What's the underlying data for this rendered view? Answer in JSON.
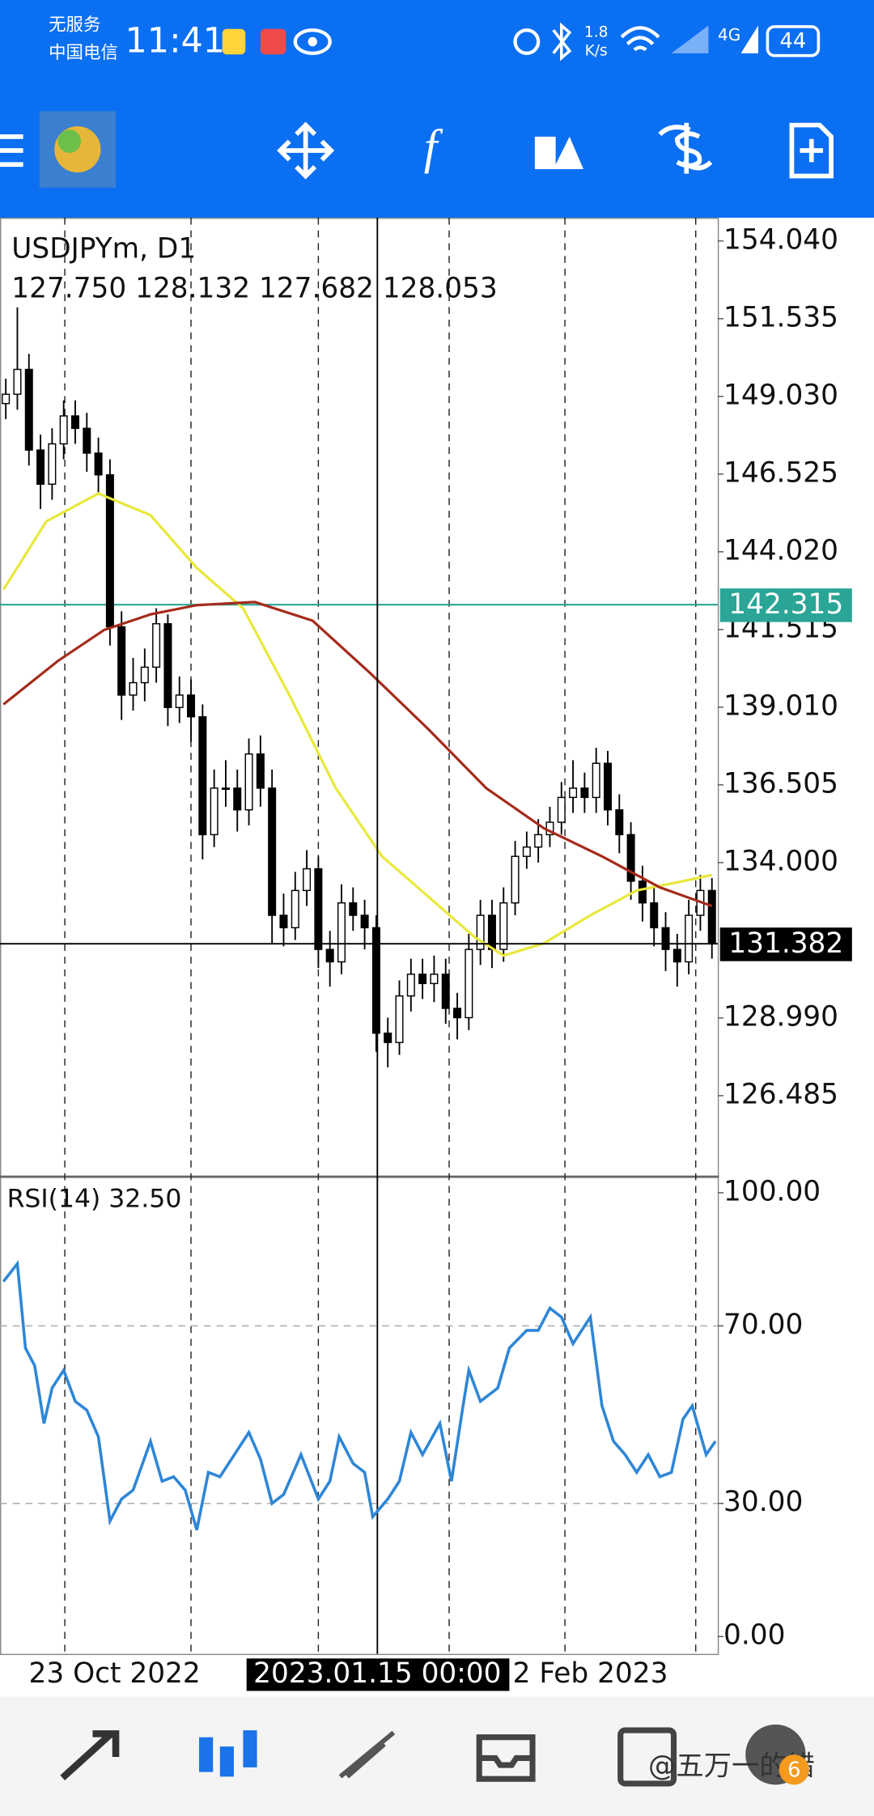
{
  "status_bar": {
    "carrier_top": "无服务",
    "carrier_bottom": "中国电信",
    "time": "11:41",
    "speed_value": "1.8",
    "speed_unit": "K/s",
    "network": "4G",
    "battery": "44"
  },
  "watermark": "@五万一的错",
  "badge": "6",
  "chart_data": [
    {
      "type": "candlestick",
      "title": "USDJPYm, D1",
      "ohlc_text": "127.750 128.132 127.682 128.053",
      "color": "#000000",
      "xlim": [
        -0.5,
        61.5
      ],
      "ylim": [
        123.91,
        154.79
      ],
      "yticks": [
        {
          "value": 154.04,
          "label": "154.040"
        },
        {
          "value": 151.535,
          "label": "151.535"
        },
        {
          "value": 149.03,
          "label": "149.030"
        },
        {
          "value": 146.525,
          "label": "146.525"
        },
        {
          "value": 144.02,
          "label": "144.020"
        },
        {
          "value": 141.515,
          "label": "141.515"
        },
        {
          "value": 139.01,
          "label": "139.010"
        },
        {
          "value": 136.505,
          "label": "136.505"
        },
        {
          "value": 134,
          "label": "134.000"
        },
        {
          "value": 128.99,
          "label": "128.990"
        },
        {
          "value": 126.485,
          "label": "126.485"
        }
      ],
      "xticks": [
        {
          "value": 9.4,
          "label": "23 Oct 2022"
        },
        {
          "value": 50.5,
          "label": "2 Feb 2023"
        }
      ],
      "open": [
        148.8,
        149.1,
        149.9,
        147.3,
        146.2,
        147.5,
        148.4,
        148.0,
        147.2,
        146.5,
        141.6,
        139.4,
        139.8,
        140.3,
        141.7,
        139.0,
        139.4,
        138.7,
        134.9,
        136.4,
        136.4,
        135.7,
        137.5,
        136.4,
        132.3,
        131.9,
        133.1,
        133.8,
        131.2,
        130.8,
        132.7,
        132.3,
        131.9,
        128.5,
        128.2,
        129.7,
        130.4,
        130.1,
        130.4,
        129.3,
        129.0,
        131.2,
        132.3,
        131.2,
        132.7,
        134.2,
        134.5,
        134.9,
        135.3,
        136.1,
        136.4,
        136.1,
        137.2,
        135.7,
        134.9,
        133.4,
        132.7,
        131.9,
        131.2,
        130.8,
        132.3,
        133.1
      ],
      "high": [
        149.6,
        151.9,
        150.4,
        147.8,
        148.0,
        148.9,
        148.9,
        148.5,
        147.7,
        147.0,
        142.1,
        140.6,
        140.9,
        142.2,
        142.0,
        140.0,
        139.9,
        139.1,
        137.0,
        137.3,
        137.0,
        138.0,
        138.1,
        137.0,
        133.0,
        133.7,
        134.4,
        134.2,
        131.8,
        133.3,
        133.2,
        132.8,
        132.3,
        129.0,
        130.2,
        130.9,
        130.9,
        131.0,
        130.9,
        129.8,
        131.7,
        132.8,
        132.8,
        133.2,
        134.7,
        135.0,
        135.4,
        135.8,
        136.6,
        137.3,
        136.9,
        137.7,
        137.6,
        136.2,
        135.3,
        133.9,
        133.2,
        132.4,
        131.7,
        132.8,
        133.6,
        133.5
      ],
      "low": [
        148.3,
        148.6,
        146.8,
        145.4,
        145.7,
        147.0,
        147.5,
        146.6,
        145.9,
        141.0,
        138.6,
        138.9,
        139.2,
        139.8,
        138.4,
        138.5,
        137.9,
        134.1,
        134.5,
        135.8,
        135.0,
        135.2,
        135.8,
        131.4,
        131.3,
        131.5,
        132.6,
        130.6,
        130.0,
        130.4,
        131.8,
        131.2,
        127.9,
        127.4,
        127.8,
        129.2,
        129.6,
        129.5,
        128.8,
        128.3,
        128.6,
        130.7,
        130.6,
        130.8,
        132.3,
        133.8,
        134.0,
        134.5,
        134.9,
        135.6,
        135.6,
        135.6,
        135.2,
        134.3,
        132.8,
        132.1,
        131.3,
        130.5,
        130.0,
        130.4,
        131.8,
        130.9
      ],
      "close": [
        149.1,
        149.9,
        147.3,
        146.2,
        147.5,
        148.4,
        148.0,
        147.2,
        146.5,
        141.6,
        139.4,
        139.8,
        140.3,
        141.7,
        139.0,
        139.4,
        138.7,
        134.9,
        136.4,
        136.4,
        135.7,
        137.5,
        136.4,
        132.3,
        131.9,
        133.1,
        133.8,
        131.2,
        130.8,
        132.7,
        132.3,
        131.9,
        128.5,
        128.2,
        129.7,
        130.4,
        130.1,
        130.4,
        129.3,
        129.0,
        131.2,
        132.3,
        131.2,
        132.7,
        134.2,
        134.5,
        134.9,
        135.3,
        136.1,
        136.4,
        136.1,
        137.2,
        135.7,
        134.9,
        133.4,
        132.7,
        131.9,
        131.2,
        130.8,
        132.3,
        133.1,
        131.4
      ],
      "overlays": [
        {
          "color": "#e8e83a",
          "x": [
            -0.2,
            3.5,
            8,
            12.5,
            16.5,
            20.5,
            24.5,
            28.5,
            32.5,
            36.5,
            40.5,
            43,
            46.5,
            50.5,
            54.5,
            58.5,
            61
          ],
          "values": [
            142.8,
            145.0,
            145.9,
            145.2,
            143.5,
            142.2,
            139.4,
            136.4,
            134.2,
            132.9,
            131.6,
            131.0,
            131.4,
            132.3,
            133.1,
            133.4,
            133.6
          ]
        },
        {
          "color": "#a52a1a",
          "x": [
            -0.2,
            4.5,
            8.5,
            12.5,
            16.5,
            21.5,
            26.5,
            31.5,
            36.5,
            41.5,
            46.5,
            51.5,
            56.5,
            61
          ],
          "values": [
            139.1,
            140.5,
            141.5,
            142.0,
            142.3,
            142.4,
            141.8,
            140.1,
            138.3,
            136.4,
            135.1,
            134.2,
            133.2,
            132.6
          ]
        }
      ],
      "hline": {
        "value": 142.315,
        "label": "142.315",
        "color": "#2aa596"
      },
      "crosshair": {
        "x": 32.1,
        "value": 131.382,
        "label": "131.382",
        "time": "2023.01.15 00:00"
      }
    },
    {
      "type": "line",
      "title": "RSI(14) 32.50",
      "color": "#2f86d6",
      "xlim": [
        -0.5,
        61.5
      ],
      "ylim": [
        -3.9,
        103.1
      ],
      "yticks": [
        {
          "value": 100,
          "label": "100.00"
        },
        {
          "value": 70,
          "label": "70.00"
        },
        {
          "value": 30,
          "label": "30.00"
        },
        {
          "value": 0,
          "label": "0.00"
        }
      ],
      "levels": [
        70,
        30
      ],
      "x": [
        -0.2,
        1,
        1.7,
        2.5,
        3.3,
        4,
        5,
        6,
        7,
        8,
        9,
        10,
        11,
        12.5,
        13.5,
        14.5,
        15.5,
        16.5,
        17.5,
        18.5,
        19.5,
        21,
        22,
        23,
        24,
        25.5,
        27,
        28,
        28.8,
        30,
        31,
        31.7,
        33,
        34,
        35,
        36,
        37.5,
        38.5,
        39.5,
        40,
        41,
        42.5,
        43.5,
        45,
        46,
        47,
        48,
        49,
        50.5,
        51.5,
        52.5,
        53.5,
        54.5,
        55.5,
        56.5,
        57.5,
        58.5,
        59.3,
        60.5,
        61.3
      ],
      "values": [
        80,
        84,
        65,
        61,
        48,
        56,
        60,
        53,
        51,
        45,
        26,
        31,
        33,
        44,
        35,
        36,
        33,
        24,
        37,
        36,
        40,
        46,
        40,
        30,
        32,
        41,
        31,
        35,
        45,
        39,
        37,
        27,
        31,
        35,
        46,
        41,
        48,
        35,
        52,
        60,
        53,
        56,
        65,
        69,
        69,
        74,
        72,
        66,
        72,
        52,
        44,
        41,
        37,
        41,
        36,
        37,
        49,
        52,
        41,
        44
      ]
    }
  ]
}
